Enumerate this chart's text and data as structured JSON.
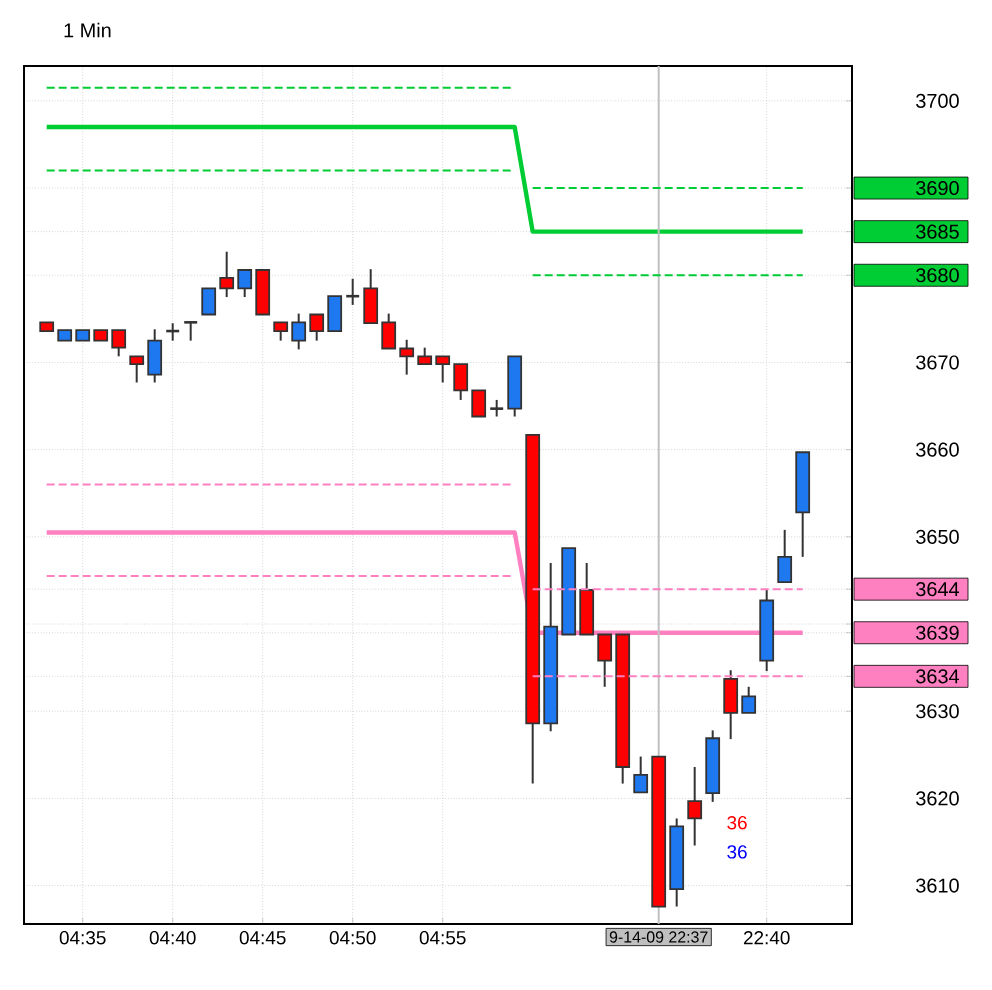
{
  "chart_data": {
    "type": "candlestick",
    "title": "1 Min",
    "categories": [
      null,
      null,
      "04:35",
      null,
      null,
      null,
      null,
      "04:40",
      null,
      null,
      null,
      null,
      "04:45",
      null,
      null,
      null,
      null,
      "04:50",
      null,
      null,
      null,
      null,
      "04:55",
      null,
      null,
      null,
      null,
      null,
      null,
      null,
      null,
      null,
      null,
      null,
      "9-14-09 22:37",
      null,
      null,
      null,
      null,
      null,
      "22:40",
      null,
      null
    ],
    "ohlc": [
      [
        3674.6,
        3674.6,
        3673.6,
        3673.6
      ],
      [
        3672.5,
        3673.7,
        3672.5,
        3673.7
      ],
      [
        3672.5,
        3673.7,
        3672.5,
        3673.7
      ],
      [
        3673.7,
        3673.7,
        3672.5,
        3672.5
      ],
      [
        3673.7,
        3673.7,
        3670.7,
        3671.7
      ],
      [
        3670.7,
        3670.7,
        3667.7,
        3669.8
      ],
      [
        3668.6,
        3673.8,
        3667.7,
        3672.5
      ],
      [
        3673.6,
        3674.5,
        3672.5,
        3673.6
      ],
      [
        3674.6,
        3674.6,
        3672.5,
        3674.6
      ],
      [
        3675.5,
        3678.5,
        3675.5,
        3678.5
      ],
      [
        3679.7,
        3682.7,
        3677.5,
        3678.5
      ],
      [
        3678.5,
        3680.6,
        3677.5,
        3680.6
      ],
      [
        3680.6,
        3680.6,
        3675.5,
        3675.5
      ],
      [
        3674.6,
        3674.6,
        3672.5,
        3673.6
      ],
      [
        3672.5,
        3675.6,
        3671.5,
        3674.6
      ],
      [
        3675.5,
        3675.5,
        3672.5,
        3673.6
      ],
      [
        3673.6,
        3677.6,
        3673.6,
        3677.6
      ],
      [
        3677.6,
        3679.6,
        3676.6,
        3677.6
      ],
      [
        3678.5,
        3680.7,
        3674.5,
        3674.5
      ],
      [
        3674.6,
        3675.6,
        3671.6,
        3671.6
      ],
      [
        3671.6,
        3672.6,
        3668.6,
        3670.7
      ],
      [
        3670.7,
        3671.7,
        3669.8,
        3669.8
      ],
      [
        3670.7,
        3670.7,
        3667.7,
        3669.8
      ],
      [
        3669.8,
        3669.8,
        3665.7,
        3666.8
      ],
      [
        3666.8,
        3666.8,
        3663.8,
        3663.8
      ],
      [
        3664.7,
        3665.7,
        3663.8,
        3664.7
      ],
      [
        3664.7,
        3670.7,
        3663.8,
        3670.7
      ],
      [
        3661.7,
        3661.7,
        3621.7,
        3628.6
      ],
      [
        3628.6,
        3647.0,
        3627.7,
        3639.7
      ],
      [
        3638.8,
        3648.7,
        3638.8,
        3648.7
      ],
      [
        3643.9,
        3647.0,
        3638.8,
        3638.8
      ],
      [
        3638.8,
        3638.8,
        3632.8,
        3635.8
      ],
      [
        3638.8,
        3638.8,
        3621.7,
        3623.6
      ],
      [
        3620.7,
        3624.8,
        3620.7,
        3622.7
      ],
      [
        3624.8,
        3624.8,
        3607.6,
        3607.6
      ],
      [
        3609.6,
        3617.7,
        3607.6,
        3616.8
      ],
      [
        3619.7,
        3623.6,
        3614.6,
        3617.7
      ],
      [
        3620.6,
        3627.8,
        3619.6,
        3626.9
      ],
      [
        3633.7,
        3634.7,
        3626.8,
        3629.8
      ],
      [
        3629.8,
        3632.8,
        3629.8,
        3631.7
      ],
      [
        3635.8,
        3643.9,
        3634.6,
        3642.7
      ],
      [
        3644.8,
        3650.8,
        3644.8,
        3647.7
      ],
      [
        3652.8,
        3659.7,
        3647.7,
        3659.7
      ]
    ],
    "colors": [
      "#ff0000",
      "#1e78f0",
      "#1e78f0",
      "#ff0000",
      "#ff0000",
      "#ff0000",
      "#1e78f0",
      "#333333",
      "#333333",
      "#1e78f0",
      "#ff0000",
      "#1e78f0",
      "#ff0000",
      "#ff0000",
      "#1e78f0",
      "#ff0000",
      "#1e78f0",
      "#333333",
      "#ff0000",
      "#ff0000",
      "#ff0000",
      "#ff0000",
      "#ff0000",
      "#ff0000",
      "#ff0000",
      "#333333",
      "#1e78f0",
      "#ff0000",
      "#1e78f0",
      "#1e78f0",
      "#ff0000",
      "#ff0000",
      "#ff0000",
      "#1e78f0",
      "#ff0000",
      "#1e78f0",
      "#ff0000",
      "#1e78f0",
      "#ff0000",
      "#1e78f0",
      "#1e78f0",
      "#1e78f0",
      "#1e78f0"
    ],
    "series": [
      {
        "type": "line",
        "color": "#00cc33",
        "line_style": "solid",
        "values": [
          3697,
          3697,
          3697,
          3697,
          3697,
          3697,
          3697,
          3697,
          3697,
          3697,
          3697,
          3697,
          3697,
          3697,
          3697,
          3697,
          3697,
          3697,
          3697,
          3697,
          3697,
          3697,
          3697,
          3697,
          3697,
          3697,
          3697,
          3685,
          3685,
          3685,
          3685,
          3685,
          3685,
          3685,
          3685,
          3685,
          3685,
          3685,
          3685,
          3685,
          3685,
          3685,
          3685
        ]
      },
      {
        "type": "line",
        "color": "#00cc33",
        "line_style": "dashed",
        "values": [
          3701.5,
          3701.5,
          3701.5,
          3701.5,
          3701.5,
          3701.5,
          3701.5,
          3701.5,
          3701.5,
          3701.5,
          3701.5,
          3701.5,
          3701.5,
          3701.5,
          3701.5,
          3701.5,
          3701.5,
          3701.5,
          3701.5,
          3701.5,
          3701.5,
          3701.5,
          3701.5,
          3701.5,
          3701.5,
          3701.5,
          3701.5,
          null,
          null,
          null,
          null,
          null,
          null,
          null,
          null,
          null,
          null,
          null,
          null,
          null,
          null,
          null,
          null
        ]
      },
      {
        "type": "line",
        "color": "#00cc33",
        "line_style": "dashed",
        "values": [
          3692,
          3692,
          3692,
          3692,
          3692,
          3692,
          3692,
          3692,
          3692,
          3692,
          3692,
          3692,
          3692,
          3692,
          3692,
          3692,
          3692,
          3692,
          3692,
          3692,
          3692,
          3692,
          3692,
          3692,
          3692,
          3692,
          3692,
          null,
          null,
          null,
          null,
          null,
          null,
          null,
          null,
          null,
          null,
          null,
          null,
          null,
          null,
          null,
          null
        ]
      },
      {
        "type": "line",
        "color": "#00cc33",
        "line_style": "dashed",
        "values": [
          null,
          null,
          null,
          null,
          null,
          null,
          null,
          null,
          null,
          null,
          null,
          null,
          null,
          null,
          null,
          null,
          null,
          null,
          null,
          null,
          null,
          null,
          null,
          null,
          null,
          null,
          null,
          3690,
          3690,
          3690,
          3690,
          3690,
          3690,
          3690,
          3690,
          3690,
          3690,
          3690,
          3690,
          3690,
          3690,
          3690,
          3690
        ]
      },
      {
        "type": "line",
        "color": "#00cc33",
        "line_style": "dashed",
        "values": [
          null,
          null,
          null,
          null,
          null,
          null,
          null,
          null,
          null,
          null,
          null,
          null,
          null,
          null,
          null,
          null,
          null,
          null,
          null,
          null,
          null,
          null,
          null,
          null,
          null,
          null,
          null,
          3680,
          3680,
          3680,
          3680,
          3680,
          3680,
          3680,
          3680,
          3680,
          3680,
          3680,
          3680,
          3680,
          3680,
          3680,
          3680
        ]
      },
      {
        "type": "line",
        "color": "#ff80c0",
        "line_style": "solid",
        "values": [
          3650.5,
          3650.5,
          3650.5,
          3650.5,
          3650.5,
          3650.5,
          3650.5,
          3650.5,
          3650.5,
          3650.5,
          3650.5,
          3650.5,
          3650.5,
          3650.5,
          3650.5,
          3650.5,
          3650.5,
          3650.5,
          3650.5,
          3650.5,
          3650.5,
          3650.5,
          3650.5,
          3650.5,
          3650.5,
          3650.5,
          3650.5,
          3639,
          3639,
          3639,
          3639,
          3639,
          3639,
          3639,
          3639,
          3639,
          3639,
          3639,
          3639,
          3639,
          3639,
          3639,
          3639
        ]
      },
      {
        "type": "line",
        "color": "#ff80c0",
        "line_style": "dashed",
        "values": [
          3656,
          3656,
          3656,
          3656,
          3656,
          3656,
          3656,
          3656,
          3656,
          3656,
          3656,
          3656,
          3656,
          3656,
          3656,
          3656,
          3656,
          3656,
          3656,
          3656,
          3656,
          3656,
          3656,
          3656,
          3656,
          3656,
          3656,
          null,
          null,
          null,
          null,
          null,
          null,
          null,
          null,
          null,
          null,
          null,
          null,
          null,
          null,
          null,
          null
        ]
      },
      {
        "type": "line",
        "color": "#ff80c0",
        "line_style": "dashed",
        "values": [
          3645.5,
          3645.5,
          3645.5,
          3645.5,
          3645.5,
          3645.5,
          3645.5,
          3645.5,
          3645.5,
          3645.5,
          3645.5,
          3645.5,
          3645.5,
          3645.5,
          3645.5,
          3645.5,
          3645.5,
          3645.5,
          3645.5,
          3645.5,
          3645.5,
          3645.5,
          3645.5,
          3645.5,
          3645.5,
          3645.5,
          3645.5,
          null,
          null,
          null,
          null,
          null,
          null,
          null,
          null,
          null,
          null,
          null,
          null,
          null,
          null,
          null,
          null
        ]
      },
      {
        "type": "line",
        "color": "#ff80c0",
        "line_style": "dashed",
        "values": [
          null,
          null,
          null,
          null,
          null,
          null,
          null,
          null,
          null,
          null,
          null,
          null,
          null,
          null,
          null,
          null,
          null,
          null,
          null,
          null,
          null,
          null,
          null,
          null,
          null,
          null,
          null,
          3644,
          3644,
          3644,
          3644,
          3644,
          3644,
          3644,
          3644,
          3644,
          3644,
          3644,
          3644,
          3644,
          3644,
          3644,
          3644
        ]
      },
      {
        "type": "line",
        "color": "#ff80c0",
        "line_style": "dashed",
        "values": [
          null,
          null,
          null,
          null,
          null,
          null,
          null,
          null,
          null,
          null,
          null,
          null,
          null,
          null,
          null,
          null,
          null,
          null,
          null,
          null,
          null,
          null,
          null,
          null,
          null,
          null,
          null,
          3634,
          3634,
          3634,
          3634,
          3634,
          3634,
          3634,
          3634,
          3634,
          3634,
          3634,
          3634,
          3634,
          3634,
          3634,
          3634
        ]
      }
    ],
    "ylim": [
      3605.6,
      3704
    ],
    "yticks": [
      3610,
      3620,
      3630,
      3634,
      3639,
      {
        "value": 3640,
        "label": null
      },
      3644,
      3650,
      3660,
      3670,
      3680,
      3685,
      3690,
      3700
    ],
    "grid": true,
    "ref_lines": [
      {
        "axis": "x",
        "value": "9-14-09 22:37",
        "color": "#c0c0c0"
      }
    ],
    "annotations": [
      "36",
      "36"
    ]
  }
}
